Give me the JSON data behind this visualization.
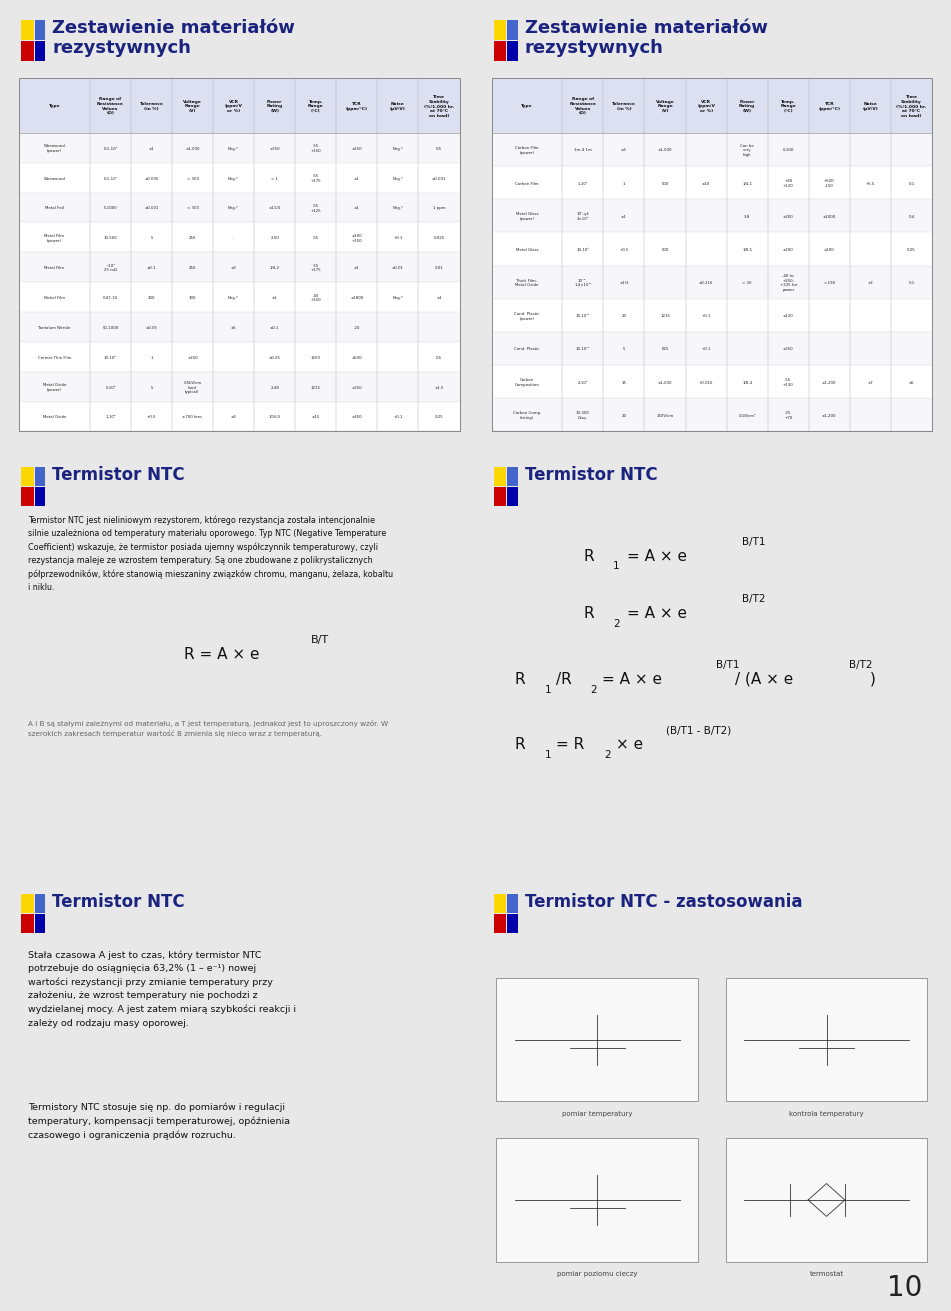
{
  "bg_color": "#e8e8e8",
  "panel_bg": "#ffffff",
  "title_color": "#1a237e",
  "page_number": "10",
  "panel_titles": [
    "Zestawienie materiałów\nrezystywnych",
    "Zestawienie materiałów\nrezystywnych",
    "Termistor NTC",
    "Termistor NTC",
    "Termistor NTC",
    "Termistor NTC - zastosowania"
  ],
  "logo_yellow": "#FFD700",
  "logo_red": "#CC0000",
  "logo_blue_light": "#4466CC",
  "logo_blue_dark": "#0000AA",
  "table1_headers": [
    "Type",
    "Range of\nResistance\nValues\n(Ω)",
    "Tolerance\n(in %)",
    "Voltage\nRange\n(V)",
    "VCR\n(ppm/V\nor %)",
    "Power\nRating\n(W)",
    "Temp.\nRange\n(°C)",
    "TCR\n(ppm/°C)",
    "Noise\n(μV/V)",
    "Time\nStability\n(%/1,000 hr.\nat 70°C\non load)"
  ],
  "table1_rows": [
    [
      "Wirewound\n(power)",
      "0.1-10⁸",
      "±1",
      "±1,000",
      "Neg.*",
      "±250",
      "-55\n+150",
      "±150",
      "Neg.*",
      "0.5"
    ],
    [
      "Wirewound",
      "0.1-10⁷",
      "±0.005",
      "< 300",
      "Neg.*",
      "< 1",
      "-55\n+175",
      "±1",
      "Neg.*",
      "±0.001"
    ],
    [
      "Metal Foil",
      "5-1000",
      "±0.001",
      "< 300",
      "Neg.*",
      "±11/4",
      "-55\n+125",
      "±1",
      "Neg.*",
      "1 ppm"
    ],
    [
      "Metal Film\n(power)",
      "10-500",
      "5",
      "250",
      "-",
      "2-50",
      "-55",
      "±100\n+150",
      "+0.1",
      "0.025"
    ],
    [
      "Metal Film",
      "~10⁴\n25 mΩ",
      "±0.1",
      "250",
      "±3",
      "1/4-2",
      "-55\n+175",
      "±1",
      "±0.01",
      "0.01"
    ],
    [
      "Nickel Film",
      "0.47-10",
      "100",
      "300",
      "Neg.*",
      "±1",
      "-40\n+150",
      "±1800",
      "Neg.*",
      "±1"
    ],
    [
      "Tantalum Nitride",
      "50-1000",
      "±0.05",
      "",
      "±5",
      "±0.1",
      "",
      "-20",
      "",
      ""
    ],
    [
      "Cermet Thin Film",
      "10-10⁸",
      "1",
      "±250",
      "",
      "±0.25",
      "1200",
      "±500",
      "",
      "0.5"
    ],
    [
      "Metal Oxide\n(power)",
      "5-10⁶",
      "5",
      "0.5kV/cm\n(and\ntypical)",
      "",
      "2-48",
      "1215",
      "±250",
      "",
      "±1.5"
    ],
    [
      "Metal Oxide",
      "1-10⁹",
      "+0.5",
      "±700 kmc",
      "±3",
      "1/16-5",
      "±15",
      "±450",
      "+0.1",
      "0.25"
    ]
  ],
  "table2_headers": [
    "Type",
    "Range of\nResistance\nValues\n(Ω)",
    "Tolerance\n(in %)",
    "Voltage\nRange\n(V)",
    "VCR\n(ppm/V\nor %)",
    "Power\nRating\n(W)",
    "Temp.\nRange\n(°C)",
    "TCR\n(ppm/°C)",
    "Noise\n(μV/V)",
    "Time\nStability\n(%/1,000 hr.\nat 70°C\non load)"
  ],
  "table2_rows": [
    [
      "Carbon Film\n(power)",
      "1m-4 1m",
      "±3",
      "±1,000",
      "",
      "Can be\nvery\nhigh",
      "0-100",
      "",
      "",
      ""
    ],
    [
      "Carbon Film",
      "1-10⁷",
      "1",
      "500",
      "±10",
      "1/4-1",
      "+40\n+120",
      "+500\n-150",
      "+5.5",
      "0.1"
    ],
    [
      "Metal Glass\n(power)",
      "10⁷-γ4\n2×10⁵",
      "±1",
      "",
      "",
      "3-8",
      "±200",
      "±1000",
      "",
      "0.4"
    ],
    [
      "Metal Glass",
      "10-10⁸",
      "+0.5",
      "500",
      "",
      "1/8-1",
      "±200",
      "±100",
      "",
      "0.25"
    ],
    [
      "Thick Film-\nMetal Oxide",
      "10⁻²-\n1.4×10¹¹",
      "±1/3",
      "",
      "±0.216",
      "< 30",
      "-40 to\n+250,\n+225 for\npower",
      "<-190",
      "±2",
      "0.1"
    ],
    [
      "Cond. Plastic\n(power)",
      "10-10¹¹",
      "20",
      "1215",
      "+0.1",
      "",
      "±120",
      "",
      "",
      ""
    ],
    [
      "Cond. Plastic",
      "10-10¹¹",
      "5",
      "625",
      "+0.1",
      "",
      "±250",
      "",
      "",
      ""
    ],
    [
      "Carbon\nComposition",
      "2-10⁸",
      "15",
      "±1,000",
      "+0.016",
      "1/8-4",
      "-55\n+130",
      "±1,200",
      "±7",
      "±5"
    ],
    [
      "Carbon Comp.\n(string)",
      "10-300\nΩ/sq.",
      "20",
      "150V/cm",
      "",
      "0.18/cm²",
      "-25\n+70",
      "±1,200",
      "",
      ""
    ]
  ],
  "slide3_text_bold": "Termistor NTC",
  "slide3_text_normal": " jest nieliniowym rezystorem, którego rezystancja została intencjonalnie silnie uzależzniona od temperatury materiału oporowego. Typ NTC (",
  "slide3_text_italic": "Negative Temperature Coefficient",
  "slide3_text_after": ") wskazuje, że termistor posiada ujemny współczynnik temperaturowy, czyli rezystancja maleje ze wzrostem temperatury. Są one zbudowane z polikrystalicznych półprzewodników, które stanowią mieszaniny związków chromu, manganu, żelaza, kobaltu i niklu.",
  "slide3_formula_main": "R = A × e",
  "slide3_formula_exp": "B/T",
  "slide3_note": "A i B są stałymi zależnymi od materiału, a T jest temperaturą. Jednakoż jest to uproszczony wzór. W szerokich zakresach temperatur wartość B zmienia się nieco wraz z temperaturą.",
  "slide5_para1": "Stała czasowa A jest to czas, który termistor NTC\npotrzebuje do osiągnięcia 63,2% (1 – e⁻¹) nowej\nwartości rezystancji przy zmianie temperatury przy\nzałożeniu, że wzrost temperatury nie pochodzi z\nwydzielanej mocy. A jest zatem miarą szybkości reakcji i\nzależy od rodzaju masy oporowej.",
  "slide5_para2": "Termistory NTC stosuje się np. do pomiarów i regulacji\ntemperatury, kompensacji temperaturowej, opóźnienia\nczasowego i ograniczenia prądów rozruchu.",
  "slide6_labels": [
    "pomiar temperatury",
    "kontrola temperatury",
    "pomiar poziomu cieczy",
    "termostat"
  ]
}
